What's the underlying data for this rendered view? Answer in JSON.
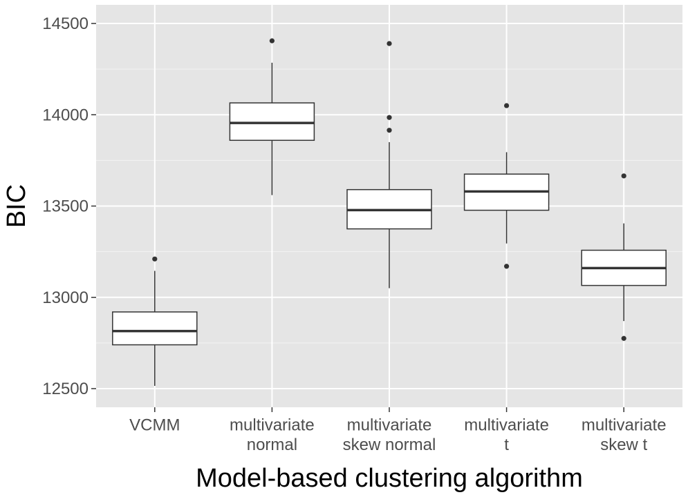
{
  "chart_data": {
    "type": "boxplot",
    "title": "",
    "xlabel": "Model-based clustering algorithm",
    "ylabel": "BIC",
    "ylim": [
      12430,
      14600
    ],
    "yticks": [
      12500,
      13000,
      13500,
      14000,
      14500
    ],
    "ytick_labels": [
      "12500",
      "13000",
      "13500",
      "14000",
      "14500"
    ],
    "grid": true,
    "legend": "none",
    "categories": [
      {
        "lines": [
          "VCMM"
        ]
      },
      {
        "lines": [
          "multivariate",
          "normal"
        ]
      },
      {
        "lines": [
          "multivariate",
          "skew normal"
        ]
      },
      {
        "lines": [
          "multivariate",
          "t"
        ]
      },
      {
        "lines": [
          "multivariate",
          "skew t"
        ]
      }
    ],
    "boxes": [
      {
        "whisker_low": 12515,
        "q1": 12740,
        "median": 12815,
        "q3": 12920,
        "whisker_high": 13145,
        "outliers": [
          13210
        ]
      },
      {
        "whisker_low": 13560,
        "q1": 13860,
        "median": 13955,
        "q3": 14065,
        "whisker_high": 14285,
        "outliers": [
          14405
        ]
      },
      {
        "whisker_low": 13050,
        "q1": 13375,
        "median": 13478,
        "q3": 13590,
        "whisker_high": 13850,
        "outliers": [
          13915,
          13985,
          14390
        ]
      },
      {
        "whisker_low": 13295,
        "q1": 13477,
        "median": 13580,
        "q3": 13675,
        "whisker_high": 13795,
        "outliers": [
          13170,
          14050
        ]
      },
      {
        "whisker_low": 12870,
        "q1": 13065,
        "median": 13160,
        "q3": 13258,
        "whisker_high": 13405,
        "outliers": [
          12775,
          13665
        ]
      }
    ],
    "colors": {
      "panel_background": "#e5e5e5",
      "grid": "#ffffff",
      "box_fill": "#ffffff",
      "box_stroke": "#333333",
      "outlier": "#333333",
      "tick_text": "#4d4d4d",
      "title_text": "#000000"
    }
  }
}
